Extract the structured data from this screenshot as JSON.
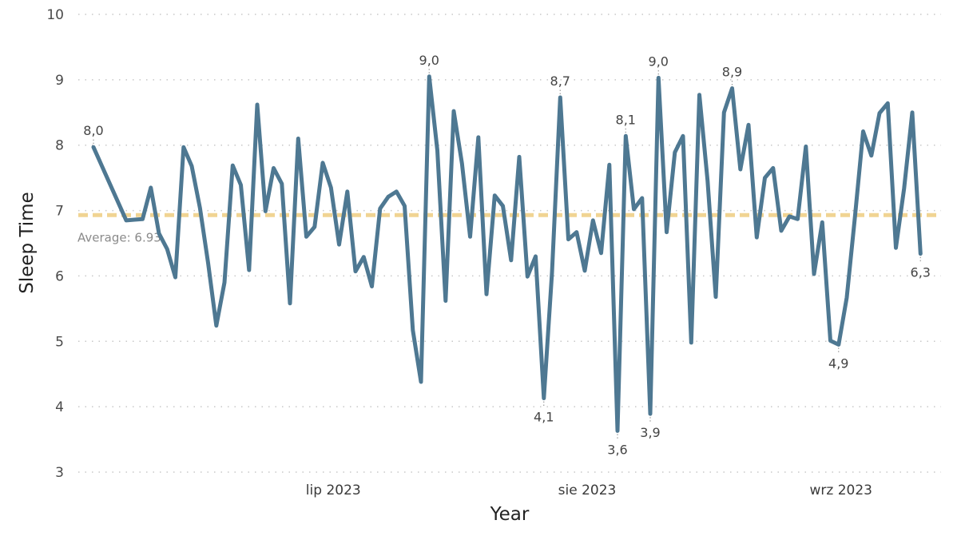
{
  "chart_data": {
    "type": "line",
    "title": "",
    "xlabel": "Year",
    "ylabel": "Sleep Time",
    "ylim": [
      3,
      10
    ],
    "yticks": [
      "10",
      "9",
      "8",
      "7",
      "6",
      "5",
      "4",
      "3"
    ],
    "xticks": [
      {
        "label": "lip 2023",
        "date": "2023-07-01"
      },
      {
        "label": "sie 2023",
        "date": "2023-08-01"
      },
      {
        "label": "wrz 2023",
        "date": "2023-09-01"
      }
    ],
    "x_start": "2023-06-02",
    "grid": "horizontal-dotted",
    "series_color": "#4e7892",
    "average": {
      "value": 6.93,
      "label": "Average: 6.93",
      "color": "#f0d493"
    },
    "series": [
      {
        "values": [
          7.97,
          6.85,
          6.86,
          6.87,
          7.35,
          6.65,
          6.41,
          5.98,
          7.97,
          7.68,
          7.04,
          6.2,
          5.24,
          5.9,
          7.69,
          7.39,
          6.09,
          8.62,
          6.99,
          7.65,
          7.41,
          5.58,
          8.1,
          6.6,
          6.75,
          7.73,
          7.35,
          6.48,
          7.29,
          6.07,
          6.29,
          5.84,
          7.03,
          7.21,
          7.29,
          7.07,
          5.17,
          4.38,
          9.05,
          7.92,
          5.62,
          8.52,
          7.72,
          6.6,
          8.12,
          5.72,
          7.23,
          7.07,
          6.24,
          7.82,
          5.99,
          6.3,
          4.13,
          6.05,
          8.73,
          6.56,
          6.67,
          6.08,
          6.85,
          6.35,
          7.7,
          3.63,
          8.14,
          7.02,
          7.19,
          3.89,
          9.03,
          6.67,
          7.89,
          8.14,
          4.98,
          8.77,
          7.45,
          5.68,
          8.5,
          8.87,
          7.63,
          8.31,
          6.59,
          7.5,
          7.65,
          6.69,
          6.91,
          6.87,
          7.98,
          6.03,
          6.82,
          5.01,
          4.95,
          5.67,
          6.91,
          8.21,
          7.84,
          8.49,
          8.64,
          6.43,
          7.34,
          8.5,
          6.34
        ]
      }
    ],
    "x_gaps_after_index": {
      "0": 3
    },
    "data_labels": [
      {
        "index": 0,
        "text": "8,0",
        "position": "above"
      },
      {
        "index": 38,
        "text": "9,0",
        "position": "above"
      },
      {
        "index": 52,
        "text": "4,1",
        "position": "below"
      },
      {
        "index": 54,
        "text": "8,7",
        "position": "above"
      },
      {
        "index": 61,
        "text": "3,6",
        "position": "below"
      },
      {
        "index": 62,
        "text": "8,1",
        "position": "above"
      },
      {
        "index": 65,
        "text": "3,9",
        "position": "below"
      },
      {
        "index": 66,
        "text": "9,0",
        "position": "above"
      },
      {
        "index": 75,
        "text": "8,9",
        "position": "above"
      },
      {
        "index": 88,
        "text": "4,9",
        "position": "below"
      },
      {
        "index": 98,
        "text": "6,3",
        "position": "below"
      }
    ]
  }
}
